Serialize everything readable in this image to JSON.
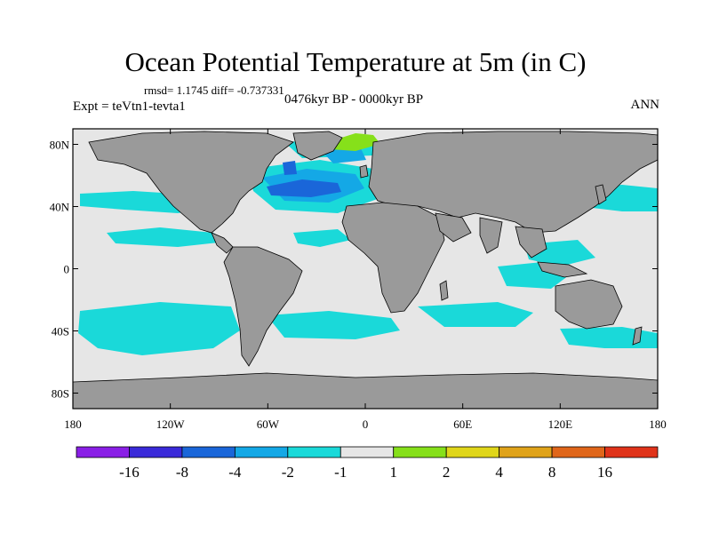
{
  "title": "Ocean Potential Temperature at 5m (in C)",
  "stats": "rmsd= 1.1745 diff= -0.737331",
  "experiment": "Expt = teVtn1-tevta1",
  "period": "0476kyr BP - 0000kyr BP",
  "season": "ANN",
  "lat_ticks": [
    "80N",
    "40N",
    "0",
    "40S",
    "80S"
  ],
  "lat_values": [
    80,
    40,
    0,
    -40,
    -80
  ],
  "lon_ticks": [
    "180",
    "120W",
    "60W",
    "0",
    "60E",
    "120E",
    "180"
  ],
  "lon_values": [
    -180,
    -120,
    -60,
    0,
    60,
    120,
    180
  ],
  "colorbar": {
    "levels": [
      "-16",
      "-8",
      "-4",
      "-2",
      "-1",
      "1",
      "2",
      "4",
      "8",
      "16"
    ],
    "colors": [
      "#8a1fe6",
      "#3a2ad9",
      "#1a66d9",
      "#14a8e6",
      "#1ad9d9",
      "#e6e6e6",
      "#86e01a",
      "#e0d61a",
      "#e0a31a",
      "#e0661a",
      "#e0331a"
    ]
  },
  "colors": {
    "ocean_neutral": "#e6e6e6",
    "land": "#9a9a9a",
    "cyan": "#1ad9d9",
    "light_blue": "#14a8e6",
    "mid_blue": "#1a66d9",
    "green": "#86e01a"
  }
}
